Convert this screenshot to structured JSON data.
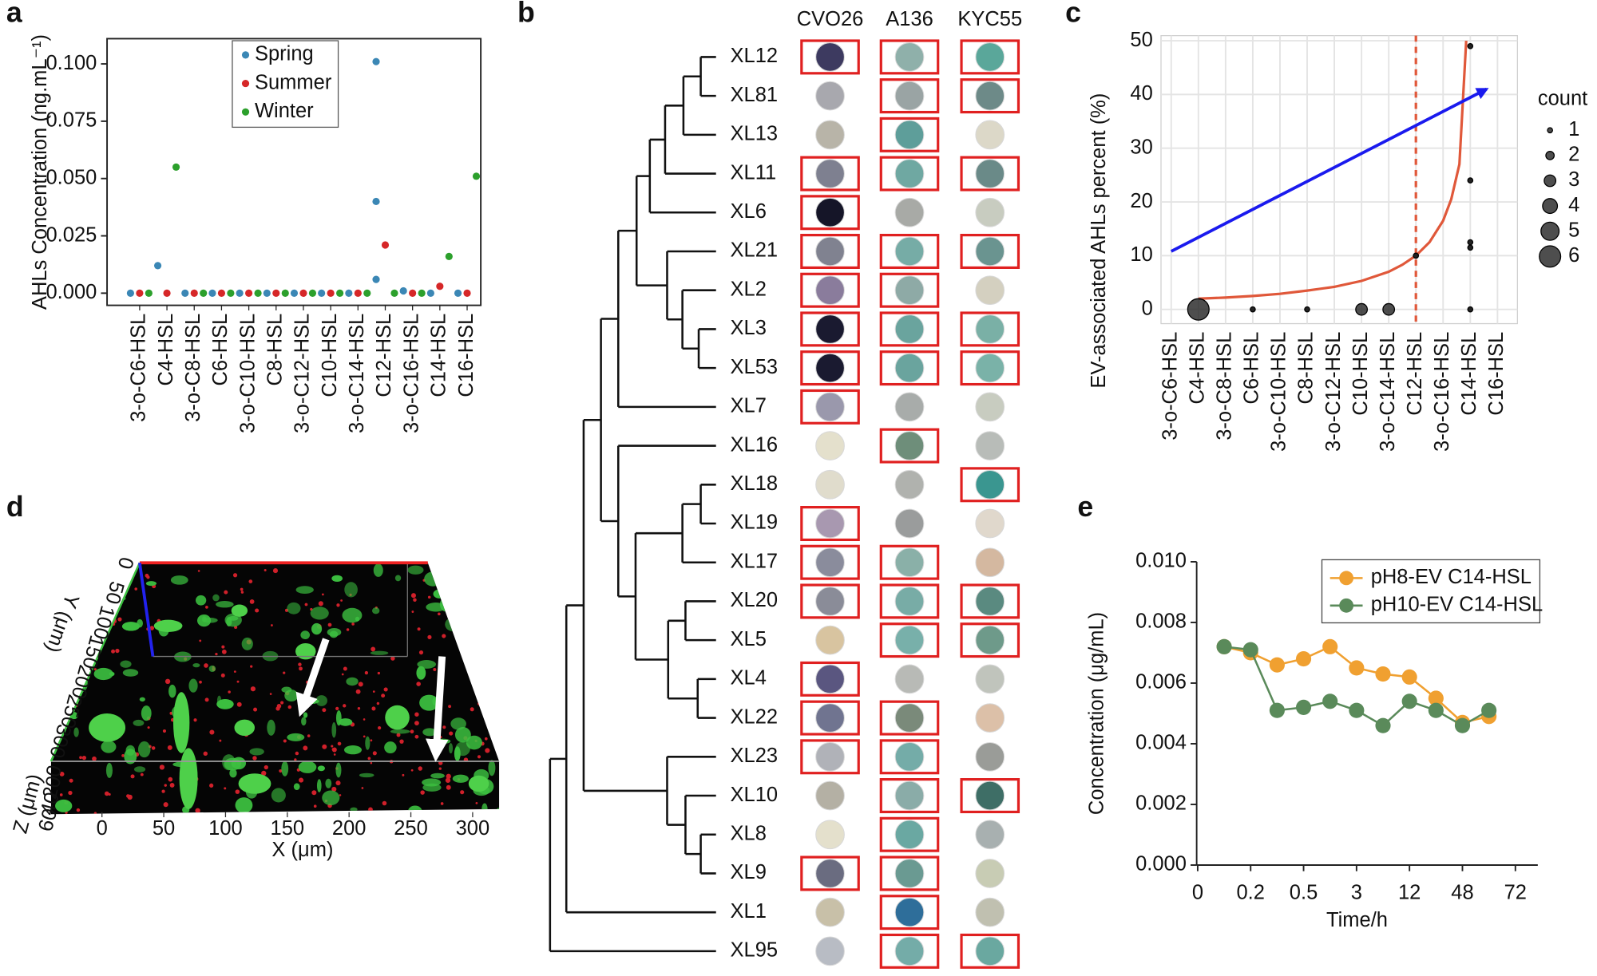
{
  "chart_data": [
    {
      "panel": "a",
      "type": "scatter",
      "ylabel": "AHLs Concentration (ng.mL⁻¹)",
      "categories": [
        "3-o-C6-HSL",
        "C4-HSL",
        "3-o-C8-HSL",
        "C6-HSL",
        "3-o-C10-HSL",
        "C8-HSL",
        "3-o-C12-HSL",
        "C10-HSL",
        "3-o-C14-HSL",
        "C12-HSL",
        "3-o-C16-HSL",
        "C14-HSL",
        "C16-HSL"
      ],
      "series": [
        {
          "name": "Spring",
          "color": "#3b87b5",
          "values": [
            [
              0
            ],
            [
              0.012
            ],
            [
              0
            ],
            [
              0
            ],
            [
              0
            ],
            [
              0
            ],
            [
              0
            ],
            [
              0
            ],
            [
              0
            ],
            [
              0.101,
              0.04,
              0.006
            ],
            [
              0.001
            ],
            [
              0
            ],
            [
              0
            ]
          ]
        },
        {
          "name": "Summer",
          "color": "#d62728",
          "values": [
            [
              0
            ],
            [
              0
            ],
            [
              0
            ],
            [
              0
            ],
            [
              0
            ],
            [
              0
            ],
            [
              0
            ],
            [
              0
            ],
            [
              0
            ],
            [
              0.021
            ],
            [
              0
            ],
            [
              0.003
            ],
            [
              0
            ]
          ]
        },
        {
          "name": "Winter",
          "color": "#2ca02c",
          "values": [
            [
              0
            ],
            [
              0.055
            ],
            [
              0
            ],
            [
              0
            ],
            [
              0
            ],
            [
              0
            ],
            [
              0
            ],
            [
              0
            ],
            [
              0
            ],
            [
              0
            ],
            [
              0
            ],
            [
              0.016
            ],
            [
              0.051
            ]
          ]
        }
      ],
      "ylim": [
        -0.0053,
        0.111
      ],
      "yticks": [
        {
          "value": 0,
          "label": "0.000"
        },
        {
          "value": 0.025,
          "label": "0.025"
        },
        {
          "value": 0.05,
          "label": "0.050"
        },
        {
          "value": 0.075,
          "label": "0.075"
        },
        {
          "value": 0.1,
          "label": "0.100"
        }
      ],
      "legend": "top-center"
    },
    {
      "panel": "b",
      "type": "screen",
      "columns": [
        "CVO26",
        "A136",
        "KYC55"
      ],
      "box_color": "#e02020",
      "rows": [
        {
          "label": "XL12",
          "boxed": [
            true,
            true,
            true
          ],
          "colors": [
            "#3d3a60",
            "#8fb0aa",
            "#5aa79a"
          ]
        },
        {
          "label": "XL81",
          "boxed": [
            false,
            true,
            true
          ],
          "colors": [
            "#a8a8ae",
            "#9aa4a4",
            "#6d8a88"
          ]
        },
        {
          "label": "XL13",
          "boxed": [
            false,
            true,
            false
          ],
          "colors": [
            "#b8b4a8",
            "#5e9e9a",
            "#dcd8c8"
          ]
        },
        {
          "label": "XL11",
          "boxed": [
            true,
            true,
            true
          ],
          "colors": [
            "#7e8090",
            "#6fa8a2",
            "#6a8a88"
          ]
        },
        {
          "label": "XL6",
          "boxed": [
            true,
            false,
            false
          ],
          "colors": [
            "#151528",
            "#a8aaa6",
            "#c8ccc0"
          ]
        },
        {
          "label": "XL21",
          "boxed": [
            true,
            true,
            true
          ],
          "colors": [
            "#808290",
            "#76aca6",
            "#6a9490"
          ]
        },
        {
          "label": "XL2",
          "boxed": [
            true,
            true,
            false
          ],
          "colors": [
            "#8a7c9c",
            "#8eaaa6",
            "#d4d0c0"
          ]
        },
        {
          "label": "XL3",
          "boxed": [
            true,
            true,
            true
          ],
          "colors": [
            "#1a1a30",
            "#6aa49e",
            "#7ab0a6"
          ]
        },
        {
          "label": "XL53",
          "boxed": [
            true,
            true,
            true
          ],
          "colors": [
            "#1a1a30",
            "#6aa49e",
            "#7ab2a8"
          ]
        },
        {
          "label": "XL7",
          "boxed": [
            true,
            false,
            false
          ],
          "colors": [
            "#9a98ac",
            "#a8acaa",
            "#c8ccc0"
          ]
        },
        {
          "label": "XL16",
          "boxed": [
            false,
            true,
            false
          ],
          "colors": [
            "#e4e0cc",
            "#6e8e7a",
            "#b8bcb8"
          ]
        },
        {
          "label": "XL18",
          "boxed": [
            false,
            false,
            true
          ],
          "colors": [
            "#e0dccc",
            "#b0b2ae",
            "#3a9690"
          ]
        },
        {
          "label": "XL19",
          "boxed": [
            true,
            false,
            false
          ],
          "colors": [
            "#a898b0",
            "#9a9c9c",
            "#e0d8cc"
          ]
        },
        {
          "label": "XL17",
          "boxed": [
            true,
            true,
            false
          ],
          "colors": [
            "#8a8c9c",
            "#8ab0a8",
            "#d4b8a0"
          ]
        },
        {
          "label": "XL20",
          "boxed": [
            true,
            true,
            true
          ],
          "colors": [
            "#8a8c98",
            "#78aca6",
            "#5a8a80"
          ]
        },
        {
          "label": "XL5",
          "boxed": [
            false,
            true,
            true
          ],
          "colors": [
            "#d8c4a0",
            "#78b0aa",
            "#6e9a8a"
          ]
        },
        {
          "label": "XL4",
          "boxed": [
            true,
            false,
            false
          ],
          "colors": [
            "#5a5680",
            "#b8bab6",
            "#c0c4bc"
          ]
        },
        {
          "label": "XL22",
          "boxed": [
            true,
            true,
            false
          ],
          "colors": [
            "#707490",
            "#7a8a7a",
            "#dcc0a8"
          ]
        },
        {
          "label": "XL23",
          "boxed": [
            true,
            true,
            false
          ],
          "colors": [
            "#b0b2b8",
            "#74aca8",
            "#9a9c98"
          ]
        },
        {
          "label": "XL10",
          "boxed": [
            false,
            true,
            true
          ],
          "colors": [
            "#b4b0a4",
            "#8aaca8",
            "#3e6e66"
          ]
        },
        {
          "label": "XL8",
          "boxed": [
            false,
            true,
            false
          ],
          "colors": [
            "#e4e0cc",
            "#6aa8a2",
            "#a8b0b0"
          ]
        },
        {
          "label": "XL9",
          "boxed": [
            true,
            true,
            false
          ],
          "colors": [
            "#6a6c80",
            "#6a9a92",
            "#c8ccb4"
          ]
        },
        {
          "label": "XL1",
          "boxed": [
            false,
            true,
            false
          ],
          "colors": [
            "#c8c0a8",
            "#2e6e9a",
            "#c0c0b0"
          ]
        },
        {
          "label": "XL95",
          "boxed": [
            false,
            true,
            true
          ],
          "colors": [
            "#b8bcc4",
            "#74aca8",
            "#6aa8a0"
          ]
        }
      ]
    },
    {
      "panel": "c",
      "type": "bubble",
      "ylabel": "EV-associated AHLs percent (%)",
      "categories": [
        "3-o-C6-HSL",
        "C4-HSL",
        "3-o-C8-HSL",
        "C6-HSL",
        "3-o-C10-HSL",
        "C8-HSL",
        "3-o-C12-HSL",
        "C10-HSL",
        "3-o-C14-HSL",
        "C12-HSL",
        "3-o-C16-HSL",
        "C14-HSL",
        "C16-HSL"
      ],
      "x": [
        1,
        3,
        5,
        7,
        8,
        9,
        11,
        11,
        11,
        11,
        11
      ],
      "y": [
        0,
        0,
        0,
        0,
        0,
        10,
        49,
        24,
        12.5,
        11.5,
        0
      ],
      "size": [
        6,
        1,
        1,
        3,
        3,
        1,
        1,
        1,
        1,
        1,
        1
      ],
      "color": "#222222",
      "size_title": "count",
      "size_legend": [
        1,
        2,
        3,
        4,
        5,
        6
      ],
      "fit": {
        "color": "#e0583a",
        "x": [
          1,
          2,
          3,
          4,
          5,
          6,
          7,
          8,
          8.5,
          9,
          9.5,
          10,
          10.3,
          10.6,
          10.85
        ],
        "values": [
          2,
          2.2,
          2.5,
          2.9,
          3.5,
          4.2,
          5.3,
          7,
          8.3,
          10,
          12.5,
          16.5,
          20.5,
          27,
          50
        ]
      },
      "arrow_color": "#1a1aee",
      "ylim": [
        -2.65,
        50.95
      ],
      "yticks": [
        0,
        10,
        20,
        30,
        40,
        50
      ],
      "grid": true
    },
    {
      "panel": "d",
      "type": "image",
      "xlabel": "X (μm)",
      "ylabel": "Y (μm)",
      "zlabel": "Z (μm)",
      "xticks": [
        0,
        50,
        100,
        150,
        200,
        250,
        300
      ],
      "yticks": [
        0,
        50,
        100,
        150,
        200,
        250,
        300
      ],
      "zticks": [
        0,
        20,
        40,
        60
      ]
    },
    {
      "panel": "e",
      "type": "line",
      "xlabel": "Time/h",
      "ylabel": "Concentration (μg/mL)",
      "categories": [
        "0",
        null,
        "0.2",
        null,
        "0.5",
        null,
        "3",
        null,
        "12",
        null,
        "48",
        null,
        "72"
      ],
      "series": [
        {
          "name": "pH8-EV C14-HSL",
          "color": "#f0a030",
          "values": [
            null,
            0.0072,
            0.007,
            0.0066,
            0.0068,
            0.0072,
            0.0065,
            0.0063,
            0.0062,
            0.0055,
            0.0047,
            0.0049,
            null
          ]
        },
        {
          "name": "pH10-EV C14-HSL",
          "color": "#5a8a5a",
          "values": [
            null,
            0.0072,
            0.0071,
            0.0051,
            0.0052,
            0.0054,
            0.0051,
            0.0046,
            0.0054,
            0.0051,
            0.0046,
            0.0051,
            null
          ]
        }
      ],
      "ylim": [
        0,
        0.01
      ],
      "yticks": [
        {
          "value": 0,
          "label": "0.000"
        },
        {
          "value": 0.002,
          "label": "0.002"
        },
        {
          "value": 0.004,
          "label": "0.004"
        },
        {
          "value": 0.006,
          "label": "0.006"
        },
        {
          "value": 0.008,
          "label": "0.008"
        },
        {
          "value": 0.01,
          "label": "0.010"
        }
      ],
      "legend": "top-right"
    }
  ]
}
